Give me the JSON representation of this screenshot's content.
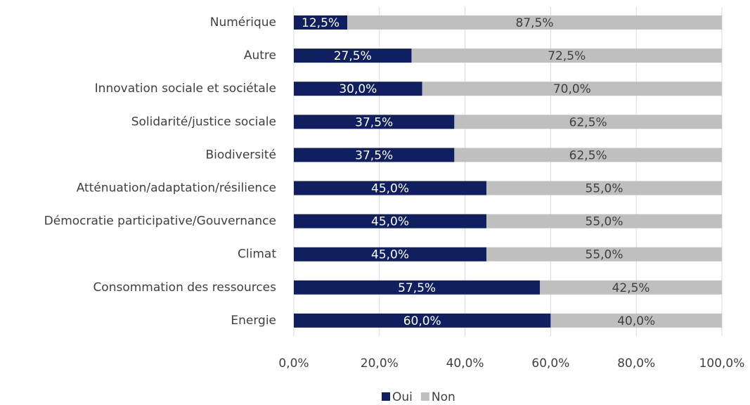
{
  "chart_data": {
    "type": "stacked-barh",
    "categories": [
      "Numérique",
      "Autre",
      "Innovation sociale et sociétale",
      "Solidarité/justice sociale",
      "Biodiversité",
      "Atténuation/adaptation/résilience",
      "Démocratie participative/Gouvernance",
      "Climat",
      "Consommation des ressources",
      "Energie"
    ],
    "series": [
      {
        "name": "Oui",
        "color": "#0f1f5f",
        "values": [
          12.5,
          27.5,
          30.0,
          37.5,
          37.5,
          45.0,
          45.0,
          45.0,
          57.5,
          60.0
        ],
        "value_labels": [
          "12,5%",
          "27,5%",
          "30,0%",
          "37,5%",
          "37,5%",
          "45,0%",
          "45,0%",
          "45,0%",
          "57,5%",
          "60,0%"
        ]
      },
      {
        "name": "Non",
        "color": "#bfbfbf",
        "values": [
          87.5,
          72.5,
          70.0,
          62.5,
          62.5,
          55.0,
          55.0,
          55.0,
          42.5,
          40.0
        ],
        "value_labels": [
          "87,5%",
          "72,5%",
          "70,0%",
          "62,5%",
          "62,5%",
          "55,0%",
          "55,0%",
          "55,0%",
          "42,5%",
          "40,0%"
        ]
      }
    ],
    "xlim": [
      0,
      100
    ],
    "xticks": [
      {
        "value": 0,
        "label": "0,0%"
      },
      {
        "value": 20,
        "label": "20,0%"
      },
      {
        "value": 40,
        "label": "40,0%"
      },
      {
        "value": 60,
        "label": "60,0%"
      },
      {
        "value": 80,
        "label": "80,0%"
      },
      {
        "value": 100,
        "label": "100,0%"
      }
    ],
    "grid": true,
    "legend": "bottom"
  }
}
